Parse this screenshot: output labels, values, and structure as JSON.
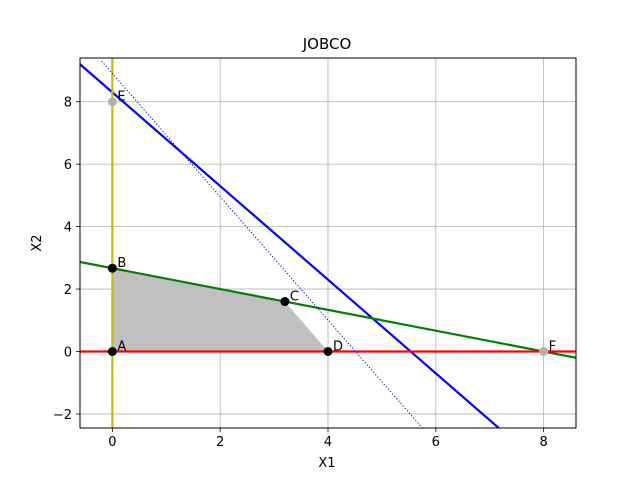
{
  "chart_data": {
    "type": "line",
    "title": "JOBCO",
    "xlabel": "X1",
    "ylabel": "X2",
    "xlim": [
      -0.6,
      8.6
    ],
    "ylim": [
      -2.45,
      9.4
    ],
    "x_ticks": [
      0,
      2,
      4,
      6,
      8
    ],
    "y_ticks": [
      -2,
      0,
      2,
      4,
      6,
      8
    ],
    "grid": true,
    "feasible_region": {
      "fill_color": "#c0c0c0",
      "vertices": [
        [
          0,
          0
        ],
        [
          0,
          2.667
        ],
        [
          3.2,
          1.6
        ],
        [
          4,
          0
        ]
      ]
    },
    "lines": [
      {
        "id": "constraint-1",
        "color": "#0000ff",
        "style": "solid",
        "points": [
          [
            -0.6,
            9.2
          ],
          [
            8.6,
            -4.6
          ]
        ]
      },
      {
        "id": "constraint-2",
        "color": "#008000",
        "style": "solid",
        "points": [
          [
            -0.6,
            2.867
          ],
          [
            8.6,
            -0.2
          ]
        ]
      },
      {
        "id": "x1-nonneg",
        "color": "#ff0000",
        "style": "solid",
        "points": [
          [
            -0.6,
            0
          ],
          [
            8.6,
            0
          ]
        ]
      },
      {
        "id": "x2-nonneg",
        "color": "#bfbf00",
        "style": "solid",
        "points": [
          [
            0,
            -2.45
          ],
          [
            0,
            9.4
          ]
        ]
      },
      {
        "id": "objective",
        "color": "#0000cc",
        "style": "dotted",
        "points": [
          [
            -0.2,
            9.3
          ],
          [
            5.75,
            -2.45
          ]
        ]
      }
    ],
    "points": [
      {
        "label": "A",
        "x": 0,
        "y": 0,
        "color": "#000000"
      },
      {
        "label": "B",
        "x": 0,
        "y": 2.667,
        "color": "#000000"
      },
      {
        "label": "C",
        "x": 3.2,
        "y": 1.6,
        "color": "#000000"
      },
      {
        "label": "D",
        "x": 4,
        "y": 0,
        "color": "#000000"
      },
      {
        "label": "E",
        "x": 0,
        "y": 8,
        "color": "#b0b0b0"
      },
      {
        "label": "F",
        "x": 8,
        "y": 0,
        "color": "#b0b0b0"
      }
    ]
  }
}
